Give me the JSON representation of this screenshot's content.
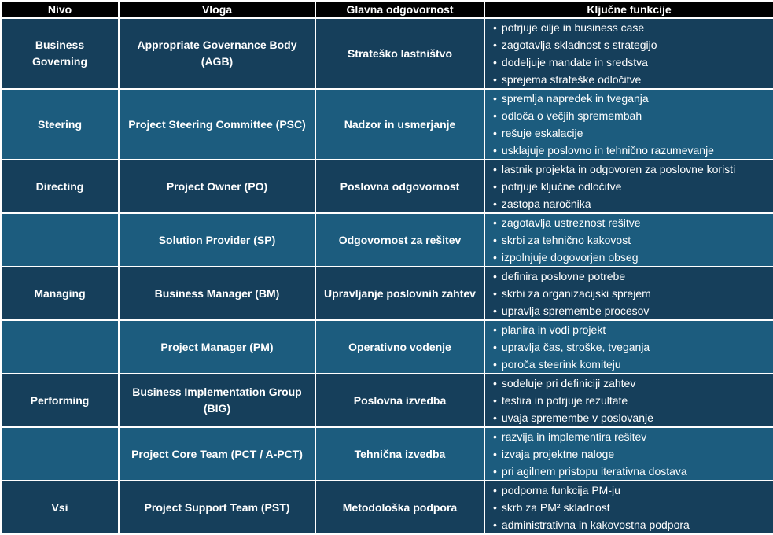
{
  "table": {
    "headers": [
      "Nivo",
      "Vloga",
      "Glavna odgovornost",
      "Ključne funkcije"
    ],
    "rows": [
      {
        "nivo": "Business Governing",
        "vloga": "Appropriate Governance Body (AGB)",
        "odgovornost": "Strateško lastništvo",
        "funkcije": [
          "potrjuje cilje in business case",
          "zagotavlja skladnost s strategijo",
          "dodeljuje mandate in sredstva",
          "sprejema strateške odločitve"
        ]
      },
      {
        "nivo": "Steering",
        "vloga": "Project Steering Committee (PSC)",
        "odgovornost": "Nadzor in usmerjanje",
        "funkcije": [
          "spremlja napredek in tveganja",
          "odloča o večjih spremembah",
          "rešuje eskalacije",
          "usklajuje poslovno in tehnično razumevanje"
        ]
      },
      {
        "nivo": "Directing",
        "vloga": "Project Owner (PO)",
        "odgovornost": "Poslovna odgovornost",
        "funkcije": [
          "lastnik projekta in odgovoren za poslovne koristi",
          "potrjuje ključne odločitve",
          "zastopa naročnika"
        ]
      },
      {
        "vloga": "Solution Provider (SP)",
        "odgovornost": "Odgovornost za rešitev",
        "funkcije": [
          "zagotavlja ustreznost rešitve",
          "skrbi za tehnično kakovost",
          "izpolnjuje dogovorjen obseg"
        ]
      },
      {
        "nivo": "Managing",
        "vloga": "Business Manager (BM)",
        "odgovornost": "Upravljanje poslovnih zahtev",
        "funkcije": [
          "definira poslovne potrebe",
          "skrbi za organizacijski sprejem",
          "upravlja spremembe procesov"
        ]
      },
      {
        "vloga": "Project Manager (PM)",
        "odgovornost": "Operativno vodenje",
        "funkcije": [
          "planira in vodi projekt",
          "upravlja čas, stroške, tveganja",
          "poroča steerink komiteju"
        ]
      },
      {
        "nivo": "Performing",
        "vloga": "Business Implementation Group (BIG)",
        "odgovornost": "Poslovna izvedba",
        "funkcije": [
          "sodeluje pri definiciji zahtev",
          "testira in potrjuje rezultate",
          "uvaja spremembe v poslovanje"
        ]
      },
      {
        "vloga": "Project Core Team (PCT / A-PCT)",
        "odgovornost": "Tehnična izvedba",
        "funkcije": [
          "razvija in implementira rešitev",
          "izvaja projektne naloge",
          "pri agilnem pristopu iterativna dostava"
        ]
      },
      {
        "nivo": "Vsi",
        "vloga": "Project Support Team (PST)",
        "odgovornost": "Metodološka podpora",
        "funkcije": [
          "podporna funkcija PM-ju",
          "skrb za PM² skladnost",
          "administrativna in kakovostna podpora"
        ]
      }
    ]
  }
}
